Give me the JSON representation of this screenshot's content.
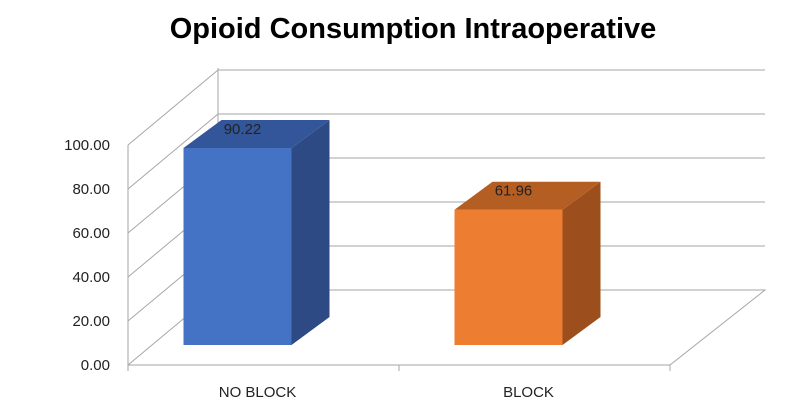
{
  "chart_data": {
    "type": "bar",
    "title": "Opioid Consumption Intraoperative",
    "xlabel": "",
    "ylabel": "",
    "categories": [
      "NO BLOCK",
      "BLOCK"
    ],
    "values": [
      90.22,
      61.96
    ],
    "data_labels": [
      "90.22",
      "61.96"
    ],
    "ylim": [
      0,
      100
    ],
    "yticks": [
      0,
      20,
      40,
      60,
      80,
      100
    ],
    "ytick_labels": [
      "0.00",
      "20.00",
      "40.00",
      "60.00",
      "80.00",
      "100.00"
    ],
    "style": "3d-column",
    "grid": true,
    "legend": "none",
    "colors": {
      "series": [
        "#4472c4",
        "#ed7d31"
      ],
      "series_dark": [
        "#2e4a85",
        "#9c4f1d"
      ],
      "series_top": [
        "#33569a",
        "#b55e23"
      ],
      "grid": "#a6a6a6"
    }
  }
}
